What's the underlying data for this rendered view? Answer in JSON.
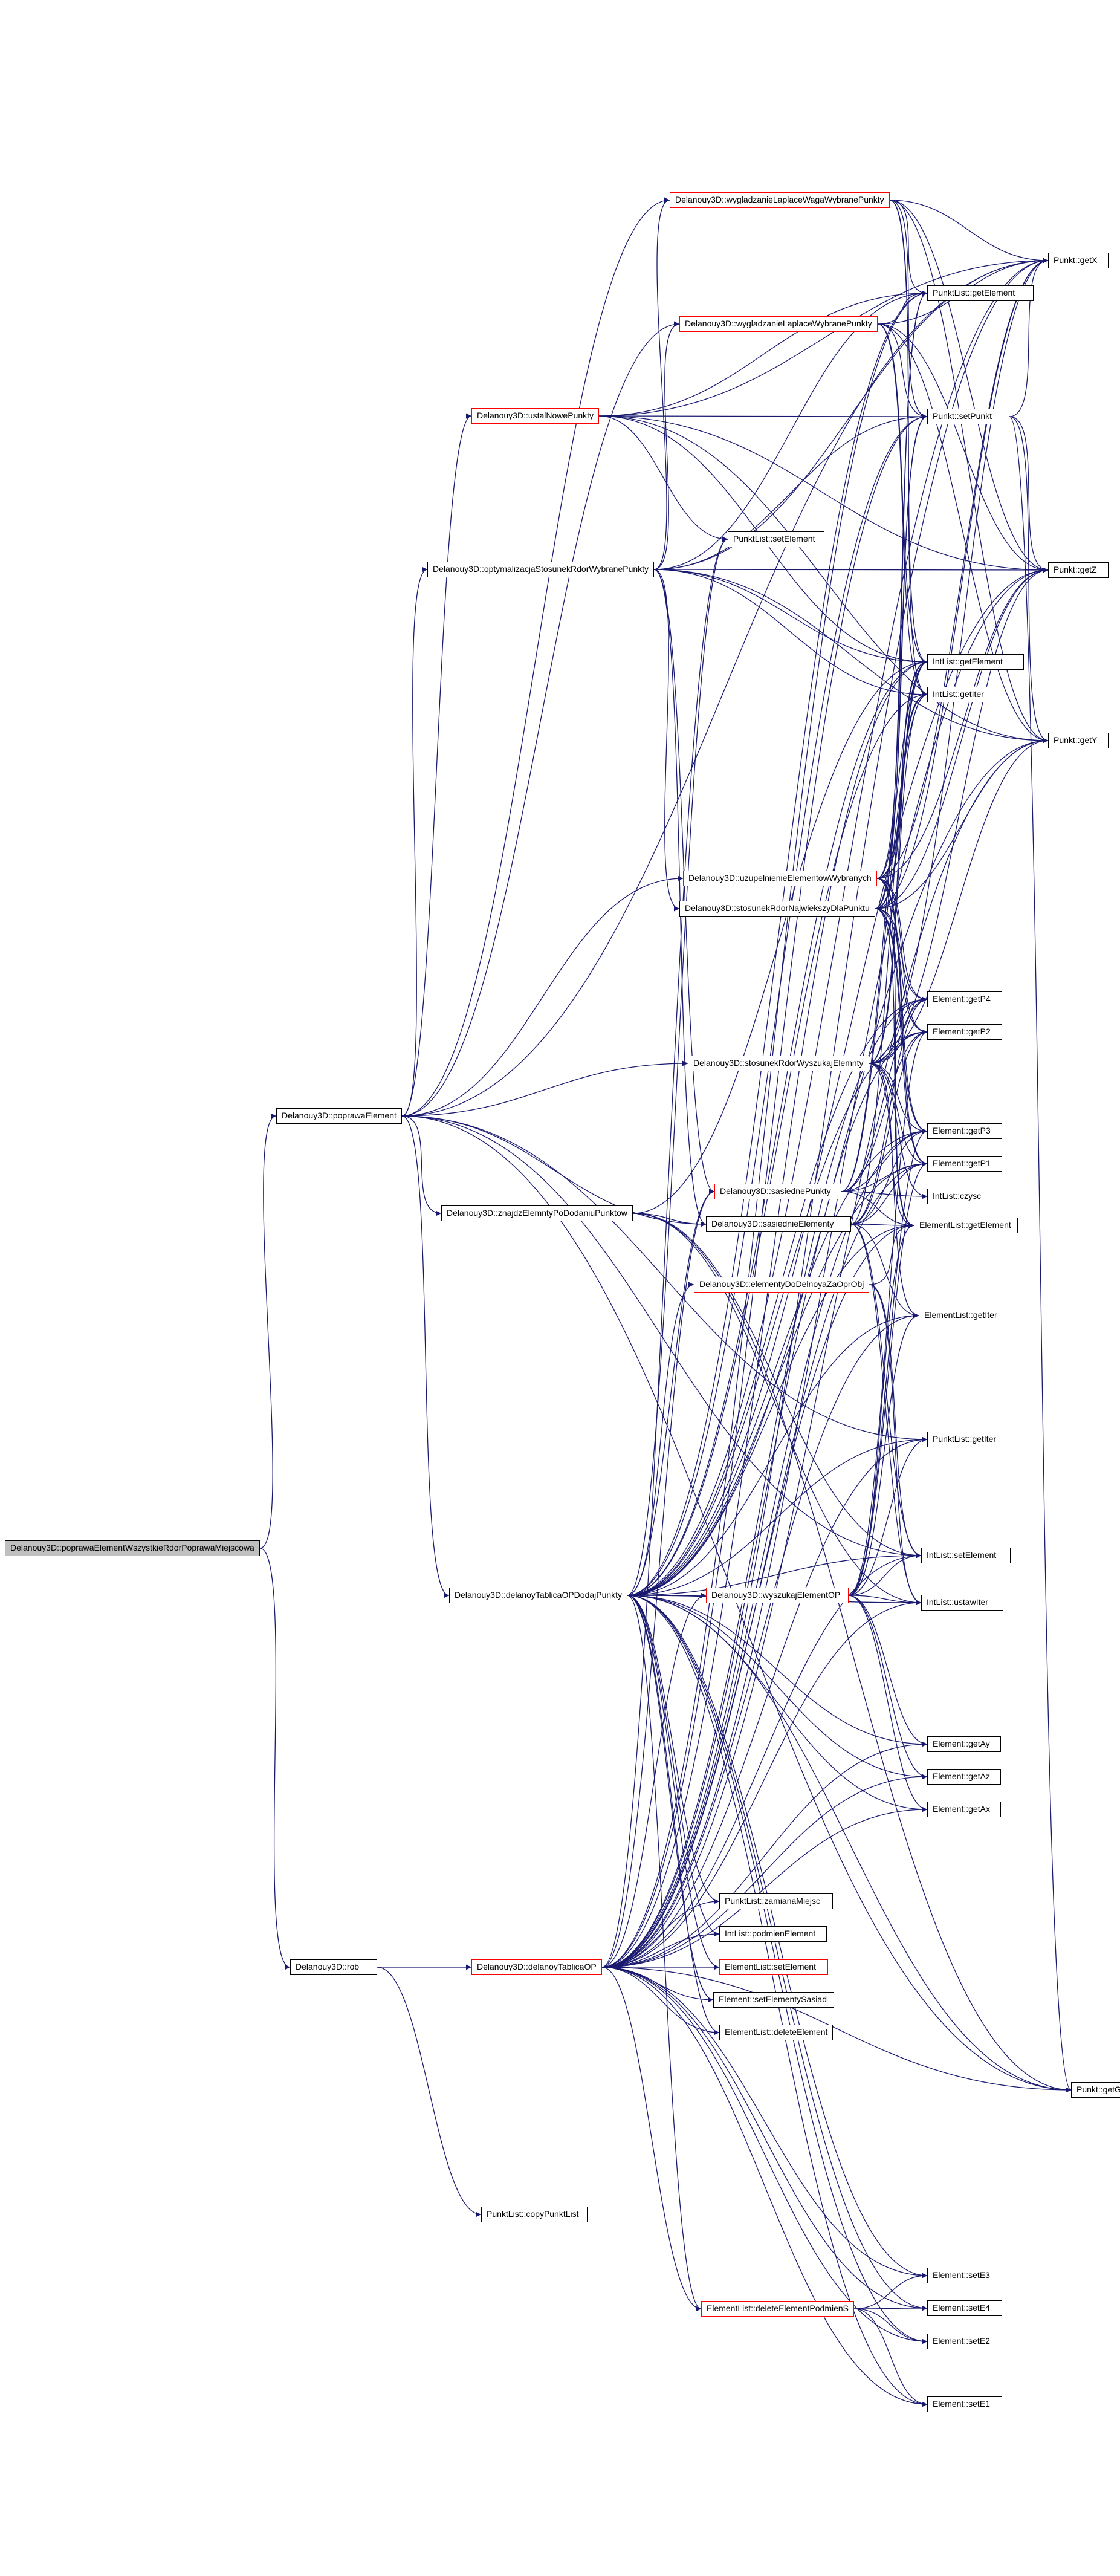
{
  "diagram": {
    "type": "call-graph",
    "colors": {
      "edge": "#191970",
      "node_border": "#000000",
      "node_border_truncated": "#ff0000",
      "root_fill": "#bfbfbf"
    },
    "nodes": [
      {
        "id": "root",
        "label": "Delanouy3D::poprawaElementWszystkieRdorPoprawaMiejscowa",
        "style": "root"
      },
      {
        "id": "popElem",
        "label": "Delanouy3D::poprawaElement",
        "style": "normal"
      },
      {
        "id": "rob",
        "label": "Delanouy3D::rob",
        "style": "normal"
      },
      {
        "id": "wygWaga",
        "label": "Delanouy3D::wygladzanieLaplaceWagaWybranePunkty",
        "style": "red"
      },
      {
        "id": "wygLap",
        "label": "Delanouy3D::wygladzanieLaplaceWybranePunkty",
        "style": "red"
      },
      {
        "id": "ustal",
        "label": "Delanouy3D::ustalNowePunkty",
        "style": "red"
      },
      {
        "id": "optym",
        "label": "Delanouy3D::optymalizacjaStosunekRdorWybranePunkty",
        "style": "normal"
      },
      {
        "id": "uzup",
        "label": "Delanouy3D::uzupelnienieElementowWybranych",
        "style": "red"
      },
      {
        "id": "stosNaj",
        "label": "Delanouy3D::stosunekRdorNajwiekszyDlaPunktu",
        "style": "normal"
      },
      {
        "id": "stosWysz",
        "label": "Delanouy3D::stosunekRdorWyszukajElemnty",
        "style": "red"
      },
      {
        "id": "znajdz",
        "label": "Delanouy3D::znajdzElemntyPoDodaniuPunktow",
        "style": "normal"
      },
      {
        "id": "sasPunkty",
        "label": "Delanouy3D::sasiednePunkty",
        "style": "red"
      },
      {
        "id": "sasElem",
        "label": "Delanouy3D::sasiednieElementy",
        "style": "normal"
      },
      {
        "id": "elemDo",
        "label": "Delanouy3D::elementyDoDelnoyaZaOprObj",
        "style": "red"
      },
      {
        "id": "dodaj",
        "label": "Delanouy3D::delanoyTablicaOPDodajPunkty",
        "style": "normal"
      },
      {
        "id": "wyszuk",
        "label": "Delanouy3D::wyszukajElementOP",
        "style": "red"
      },
      {
        "id": "delTab",
        "label": "Delanouy3D::delanoyTablicaOP",
        "style": "red"
      },
      {
        "id": "copyPL",
        "label": "PunktList::copyPunktList",
        "style": "normal"
      },
      {
        "id": "plSet",
        "label": "PunktList::setElement",
        "style": "normal"
      },
      {
        "id": "plGetEl",
        "label": "PunktList::getElement",
        "style": "normal"
      },
      {
        "id": "setPunkt",
        "label": "Punkt::setPunkt",
        "style": "normal"
      },
      {
        "id": "ilGetEl",
        "label": "IntList::getElement",
        "style": "normal"
      },
      {
        "id": "ilGetIter",
        "label": "IntList::getIter",
        "style": "normal"
      },
      {
        "id": "getP4",
        "label": "Element::getP4",
        "style": "normal"
      },
      {
        "id": "getP2",
        "label": "Element::getP2",
        "style": "normal"
      },
      {
        "id": "getP3",
        "label": "Element::getP3",
        "style": "normal"
      },
      {
        "id": "getP1",
        "label": "Element::getP1",
        "style": "normal"
      },
      {
        "id": "czysc",
        "label": "IntList::czysc",
        "style": "normal"
      },
      {
        "id": "elGetEl",
        "label": "ElementList::getElement",
        "style": "normal"
      },
      {
        "id": "elGetIter",
        "label": "ElementList::getIter",
        "style": "normal"
      },
      {
        "id": "plGetIter",
        "label": "PunktList::getIter",
        "style": "normal"
      },
      {
        "id": "ilSet",
        "label": "IntList::setElement",
        "style": "normal"
      },
      {
        "id": "ustawIter",
        "label": "IntList::ustawIter",
        "style": "normal"
      },
      {
        "id": "getAy",
        "label": "Element::getAy",
        "style": "normal"
      },
      {
        "id": "getAz",
        "label": "Element::getAz",
        "style": "normal"
      },
      {
        "id": "getAx",
        "label": "Element::getAx",
        "style": "normal"
      },
      {
        "id": "zamiana",
        "label": "PunktList::zamianaMiejsc",
        "style": "normal"
      },
      {
        "id": "podmien",
        "label": "IntList::podmienElement",
        "style": "normal"
      },
      {
        "id": "elSet",
        "label": "ElementList::setElement",
        "style": "red"
      },
      {
        "id": "setSasiad",
        "label": "Element::setElementySasiad",
        "style": "normal"
      },
      {
        "id": "delEl",
        "label": "ElementList::deleteElement",
        "style": "normal"
      },
      {
        "id": "delElPod",
        "label": "ElementList::deleteElementPodmienS",
        "style": "red"
      },
      {
        "id": "setE3",
        "label": "Element::setE3",
        "style": "normal"
      },
      {
        "id": "setE4",
        "label": "Element::setE4",
        "style": "normal"
      },
      {
        "id": "setE2",
        "label": "Element::setE2",
        "style": "normal"
      },
      {
        "id": "setE1",
        "label": "Element::setE1",
        "style": "normal"
      },
      {
        "id": "getX",
        "label": "Punkt::getX",
        "style": "normal"
      },
      {
        "id": "getZ",
        "label": "Punkt::getZ",
        "style": "normal"
      },
      {
        "id": "getY",
        "label": "Punkt::getY",
        "style": "normal"
      },
      {
        "id": "getGr",
        "label": "Punkt::getGranica",
        "style": "normal"
      }
    ],
    "edges": [
      [
        "root",
        "popElem"
      ],
      [
        "root",
        "rob"
      ],
      [
        "rob",
        "delTab"
      ],
      [
        "rob",
        "copyPL"
      ],
      [
        "popElem",
        "wygWaga"
      ],
      [
        "popElem",
        "wygLap"
      ],
      [
        "popElem",
        "ustal"
      ],
      [
        "popElem",
        "optym"
      ],
      [
        "popElem",
        "uzup"
      ],
      [
        "popElem",
        "stosWysz"
      ],
      [
        "popElem",
        "znajdz"
      ],
      [
        "popElem",
        "sasElem"
      ],
      [
        "popElem",
        "dodaj"
      ],
      [
        "popElem",
        "plGetIter"
      ],
      [
        "popElem",
        "ilSet"
      ],
      [
        "popElem",
        "getX"
      ],
      [
        "popElem",
        "getGr"
      ],
      [
        "wygWaga",
        "getX"
      ],
      [
        "wygWaga",
        "getY"
      ],
      [
        "wygWaga",
        "getZ"
      ],
      [
        "wygWaga",
        "plGetEl"
      ],
      [
        "wygWaga",
        "setPunkt"
      ],
      [
        "wygWaga",
        "ilGetEl"
      ],
      [
        "wygWaga",
        "ilGetIter"
      ],
      [
        "wygLap",
        "getX"
      ],
      [
        "wygLap",
        "getY"
      ],
      [
        "wygLap",
        "getZ"
      ],
      [
        "wygLap",
        "plGetEl"
      ],
      [
        "wygLap",
        "setPunkt"
      ],
      [
        "wygLap",
        "ilGetEl"
      ],
      [
        "wygLap",
        "ilGetIter"
      ],
      [
        "ustal",
        "plSet"
      ],
      [
        "ustal",
        "ilGetEl"
      ],
      [
        "ustal",
        "getX"
      ],
      [
        "ustal",
        "getY"
      ],
      [
        "ustal",
        "getZ"
      ],
      [
        "ustal",
        "setPunkt"
      ],
      [
        "ustal",
        "plGetEl"
      ],
      [
        "optym",
        "wygWaga"
      ],
      [
        "optym",
        "wygLap"
      ],
      [
        "optym",
        "stosNaj"
      ],
      [
        "optym",
        "plGetEl"
      ],
      [
        "optym",
        "setPunkt"
      ],
      [
        "optym",
        "ilGetEl"
      ],
      [
        "optym",
        "ilGetIter"
      ],
      [
        "optym",
        "getX"
      ],
      [
        "optym",
        "getY"
      ],
      [
        "optym",
        "getZ"
      ],
      [
        "optym",
        "sasPunkty"
      ],
      [
        "optym",
        "sasElem"
      ],
      [
        "uzup",
        "ilGetEl"
      ],
      [
        "uzup",
        "ilGetIter"
      ],
      [
        "uzup",
        "getP1"
      ],
      [
        "uzup",
        "getP2"
      ],
      [
        "uzup",
        "getP3"
      ],
      [
        "uzup",
        "getP4"
      ],
      [
        "uzup",
        "elGetEl"
      ],
      [
        "uzup",
        "plGetEl"
      ],
      [
        "uzup",
        "setPunkt"
      ],
      [
        "uzup",
        "getX"
      ],
      [
        "uzup",
        "getZ"
      ],
      [
        "stosNaj",
        "getP1"
      ],
      [
        "stosNaj",
        "getP2"
      ],
      [
        "stosNaj",
        "getP3"
      ],
      [
        "stosNaj",
        "getP4"
      ],
      [
        "stosNaj",
        "elGetEl"
      ],
      [
        "stosNaj",
        "ilGetEl"
      ],
      [
        "stosNaj",
        "ilGetIter"
      ],
      [
        "stosNaj",
        "getX"
      ],
      [
        "stosNaj",
        "getY"
      ],
      [
        "stosNaj",
        "getZ"
      ],
      [
        "stosNaj",
        "plGetEl"
      ],
      [
        "stosNaj",
        "setPunkt"
      ],
      [
        "stosWysz",
        "getP1"
      ],
      [
        "stosWysz",
        "getP2"
      ],
      [
        "stosWysz",
        "getP3"
      ],
      [
        "stosWysz",
        "getP4"
      ],
      [
        "stosWysz",
        "elGetEl"
      ],
      [
        "stosWysz",
        "elGetIter"
      ],
      [
        "stosWysz",
        "ilGetEl"
      ],
      [
        "stosWysz",
        "ilGetIter"
      ],
      [
        "stosWysz",
        "czysc"
      ],
      [
        "stosWysz",
        "getX"
      ],
      [
        "stosWysz",
        "getY"
      ],
      [
        "stosWysz",
        "getZ"
      ],
      [
        "znajdz",
        "sasElem"
      ],
      [
        "znajdz",
        "ilSet"
      ],
      [
        "znajdz",
        "ustawIter"
      ],
      [
        "znajdz",
        "ilGetEl"
      ],
      [
        "znajdz",
        "getGr"
      ],
      [
        "sasPunkty",
        "getP1"
      ],
      [
        "sasPunkty",
        "getP2"
      ],
      [
        "sasPunkty",
        "getP3"
      ],
      [
        "sasPunkty",
        "getP4"
      ],
      [
        "sasPunkty",
        "elGetEl"
      ],
      [
        "sasPunkty",
        "czysc"
      ],
      [
        "sasPunkty",
        "ilGetEl"
      ],
      [
        "sasPunkty",
        "ilGetIter"
      ],
      [
        "sasElem",
        "getP1"
      ],
      [
        "sasElem",
        "getP2"
      ],
      [
        "sasElem",
        "getP3"
      ],
      [
        "sasElem",
        "getP4"
      ],
      [
        "sasElem",
        "elGetEl"
      ],
      [
        "sasElem",
        "elGetIter"
      ],
      [
        "sasElem",
        "ilGetEl"
      ],
      [
        "sasElem",
        "ilSet"
      ],
      [
        "sasElem",
        "ustawIter"
      ],
      [
        "elemDo",
        "elGetEl"
      ],
      [
        "elemDo",
        "ilSet"
      ],
      [
        "elemDo",
        "ustawIter"
      ],
      [
        "dodaj",
        "wyszuk"
      ],
      [
        "dodaj",
        "sasPunkty"
      ],
      [
        "dodaj",
        "elemDo"
      ],
      [
        "dodaj",
        "plSet"
      ],
      [
        "dodaj",
        "plGetEl"
      ],
      [
        "dodaj",
        "setPunkt"
      ],
      [
        "dodaj",
        "ilGetEl"
      ],
      [
        "dodaj",
        "ilGetIter"
      ],
      [
        "dodaj",
        "getP1"
      ],
      [
        "dodaj",
        "getP2"
      ],
      [
        "dodaj",
        "getP3"
      ],
      [
        "dodaj",
        "getP4"
      ],
      [
        "dodaj",
        "elGetEl"
      ],
      [
        "dodaj",
        "elGetIter"
      ],
      [
        "dodaj",
        "plGetIter"
      ],
      [
        "dodaj",
        "ilSet"
      ],
      [
        "dodaj",
        "ustawIter"
      ],
      [
        "dodaj",
        "getAx"
      ],
      [
        "dodaj",
        "getAy"
      ],
      [
        "dodaj",
        "getAz"
      ],
      [
        "dodaj",
        "zamiana"
      ],
      [
        "dodaj",
        "podmien"
      ],
      [
        "dodaj",
        "elSet"
      ],
      [
        "dodaj",
        "setSasiad"
      ],
      [
        "dodaj",
        "delEl"
      ],
      [
        "dodaj",
        "delElPod"
      ],
      [
        "dodaj",
        "setE1"
      ],
      [
        "dodaj",
        "setE2"
      ],
      [
        "dodaj",
        "setE3"
      ],
      [
        "dodaj",
        "setE4"
      ],
      [
        "dodaj",
        "getX"
      ],
      [
        "dodaj",
        "getY"
      ],
      [
        "dodaj",
        "getZ"
      ],
      [
        "dodaj",
        "getGr"
      ],
      [
        "wyszuk",
        "getAx"
      ],
      [
        "wyszuk",
        "getAy"
      ],
      [
        "wyszuk",
        "getAz"
      ],
      [
        "wyszuk",
        "ilSet"
      ],
      [
        "wyszuk",
        "ustawIter"
      ],
      [
        "wyszuk",
        "elGetEl"
      ],
      [
        "wyszuk",
        "elGetIter"
      ],
      [
        "wyszuk",
        "getP1"
      ],
      [
        "wyszuk",
        "getP2"
      ],
      [
        "wyszuk",
        "getP3"
      ],
      [
        "wyszuk",
        "plGetIter"
      ],
      [
        "delTab",
        "wyszuk"
      ],
      [
        "delTab",
        "sasPunkty"
      ],
      [
        "delTab",
        "plSet"
      ],
      [
        "delTab",
        "plGetEl"
      ],
      [
        "delTab",
        "setPunkt"
      ],
      [
        "delTab",
        "ilGetEl"
      ],
      [
        "delTab",
        "getP1"
      ],
      [
        "delTab",
        "getP2"
      ],
      [
        "delTab",
        "getP3"
      ],
      [
        "delTab",
        "getP4"
      ],
      [
        "delTab",
        "elGetEl"
      ],
      [
        "delTab",
        "elGetIter"
      ],
      [
        "delTab",
        "plGetIter"
      ],
      [
        "delTab",
        "ilSet"
      ],
      [
        "delTab",
        "ustawIter"
      ],
      [
        "delTab",
        "getAx"
      ],
      [
        "delTab",
        "getAy"
      ],
      [
        "delTab",
        "getAz"
      ],
      [
        "delTab",
        "zamiana"
      ],
      [
        "delTab",
        "podmien"
      ],
      [
        "delTab",
        "elSet"
      ],
      [
        "delTab",
        "setSasiad"
      ],
      [
        "delTab",
        "delEl"
      ],
      [
        "delTab",
        "delElPod"
      ],
      [
        "delTab",
        "setE1"
      ],
      [
        "delTab",
        "setE2"
      ],
      [
        "delTab",
        "setE3"
      ],
      [
        "delTab",
        "setE4"
      ],
      [
        "delTab",
        "getX"
      ],
      [
        "delTab",
        "getY"
      ],
      [
        "delTab",
        "getZ"
      ],
      [
        "delTab",
        "getGr"
      ],
      [
        "delElPod",
        "setE1"
      ],
      [
        "delElPod",
        "setE2"
      ],
      [
        "delElPod",
        "setE3"
      ],
      [
        "delElPod",
        "setE4"
      ],
      [
        "setPunkt",
        "getX"
      ],
      [
        "setPunkt",
        "getY"
      ],
      [
        "setPunkt",
        "getZ"
      ],
      [
        "setPunkt",
        "getGr"
      ]
    ]
  }
}
